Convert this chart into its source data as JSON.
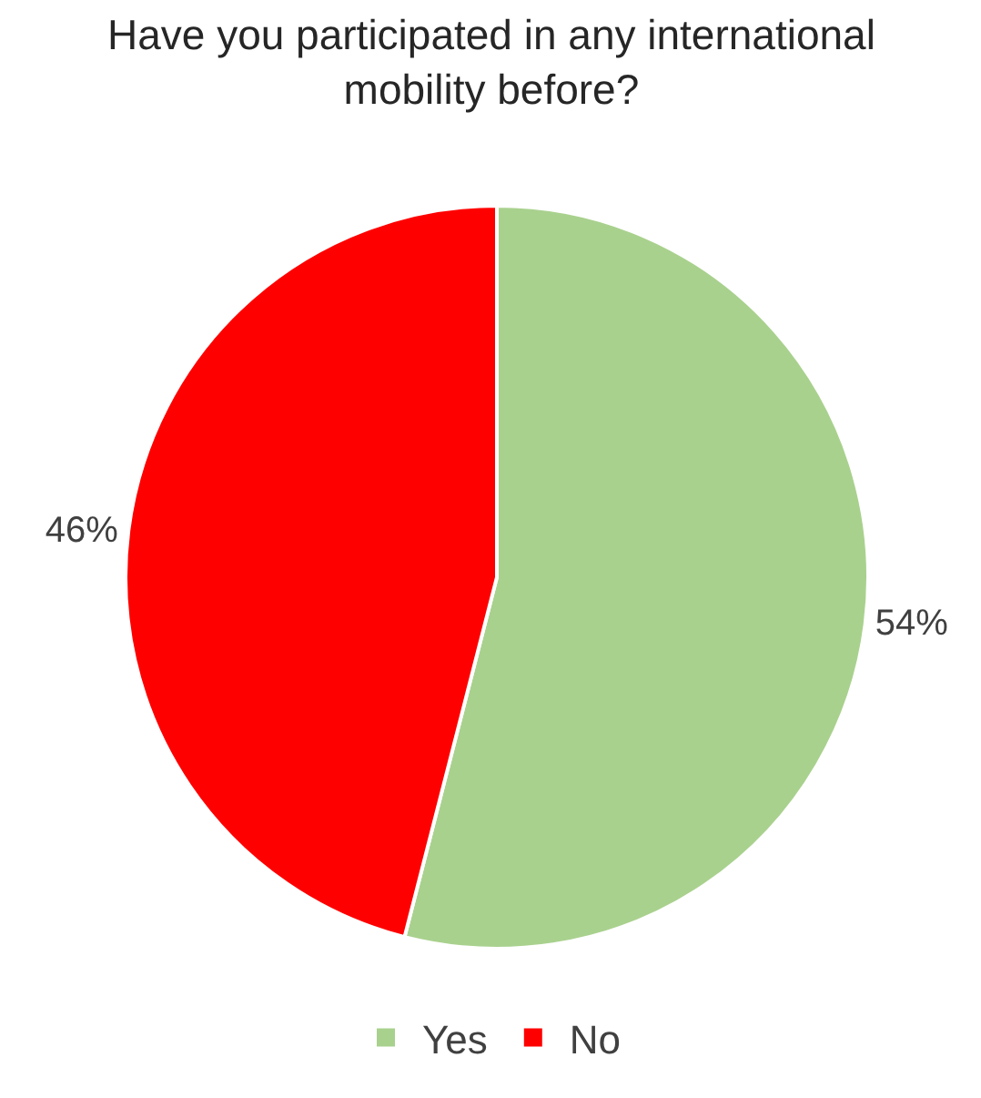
{
  "chart_data": {
    "type": "pie",
    "title": "Have you participated in any international mobility before?",
    "categories": [
      "Yes",
      "No"
    ],
    "values": [
      54,
      46
    ],
    "colors": [
      "#a9d18e",
      "#ff0000"
    ],
    "value_labels": [
      "54%",
      "46%"
    ],
    "legend": "bottom"
  }
}
